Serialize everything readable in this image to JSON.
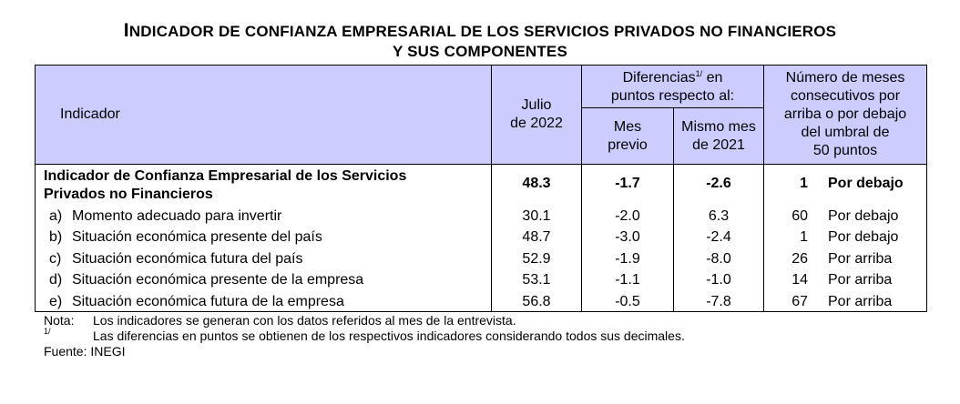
{
  "title": {
    "line1_cap": "I",
    "line1_rest": "NDICADOR DE CONFIANZA EMPRESARIAL DE LOS SERVICIOS PRIVADOS NO FINANCIEROS",
    "line2": "Y SUS COMPONENTES"
  },
  "header": {
    "indicador": "Indicador",
    "julio_l1": "Julio",
    "julio_l2": "de 2022",
    "dif_l1_a": "Diferencias",
    "dif_sup": "1/",
    "dif_l1_b": " en",
    "dif_l2": "puntos respecto al:",
    "mes_l1": "Mes",
    "mes_l2": "previo",
    "mismo_l1": "Mismo mes",
    "mismo_l2": "de 2021",
    "num_l1": "Número de meses",
    "num_l2": "consecutivos por",
    "num_l3": "arriba o por debajo",
    "num_l4": "del umbral de",
    "num_l5": "50 puntos"
  },
  "main_row": {
    "label_l1": "Indicador de Confianza Empresarial de los Servicios",
    "label_l2": "Privados no Financieros",
    "julio": "48.3",
    "mes_previo": "-1.7",
    "mismo_mes": "-2.6",
    "meses": "1",
    "umbral": "Por debajo"
  },
  "rows": [
    {
      "letter": "a)",
      "label": "Momento adecuado para invertir",
      "julio": "30.1",
      "mes_previo": "-2.0",
      "mismo_mes": "6.3",
      "meses": "60",
      "umbral": "Por debajo"
    },
    {
      "letter": "b)",
      "label": "Situación económica presente del país",
      "julio": "48.7",
      "mes_previo": "-3.0",
      "mismo_mes": "-2.4",
      "meses": "1",
      "umbral": "Por debajo"
    },
    {
      "letter": "c)",
      "label": "Situación económica futura del país",
      "julio": "52.9",
      "mes_previo": "-1.9",
      "mismo_mes": "-8.0",
      "meses": "26",
      "umbral": "Por arriba"
    },
    {
      "letter": "d)",
      "label": "Situación económica presente de la empresa",
      "julio": "53.1",
      "mes_previo": "-1.1",
      "mismo_mes": "-1.0",
      "meses": "14",
      "umbral": "Por arriba"
    },
    {
      "letter": "e)",
      "label": "Situación económica futura de la empresa",
      "julio": "56.8",
      "mes_previo": "-0.5",
      "mismo_mes": "-7.8",
      "meses": "67",
      "umbral": "Por arriba"
    }
  ],
  "notes": {
    "nota_label": "Nota:",
    "nota_text": "Los indicadores se generan con los datos referidos al mes de la entrevista.",
    "sup_label": "1/",
    "sup_text": "Las diferencias en puntos se obtienen de los respectivos indicadores considerando todos sus decimales.",
    "fuente": "Fuente: INEGI"
  },
  "colors": {
    "header_bg": "#ccccff"
  }
}
